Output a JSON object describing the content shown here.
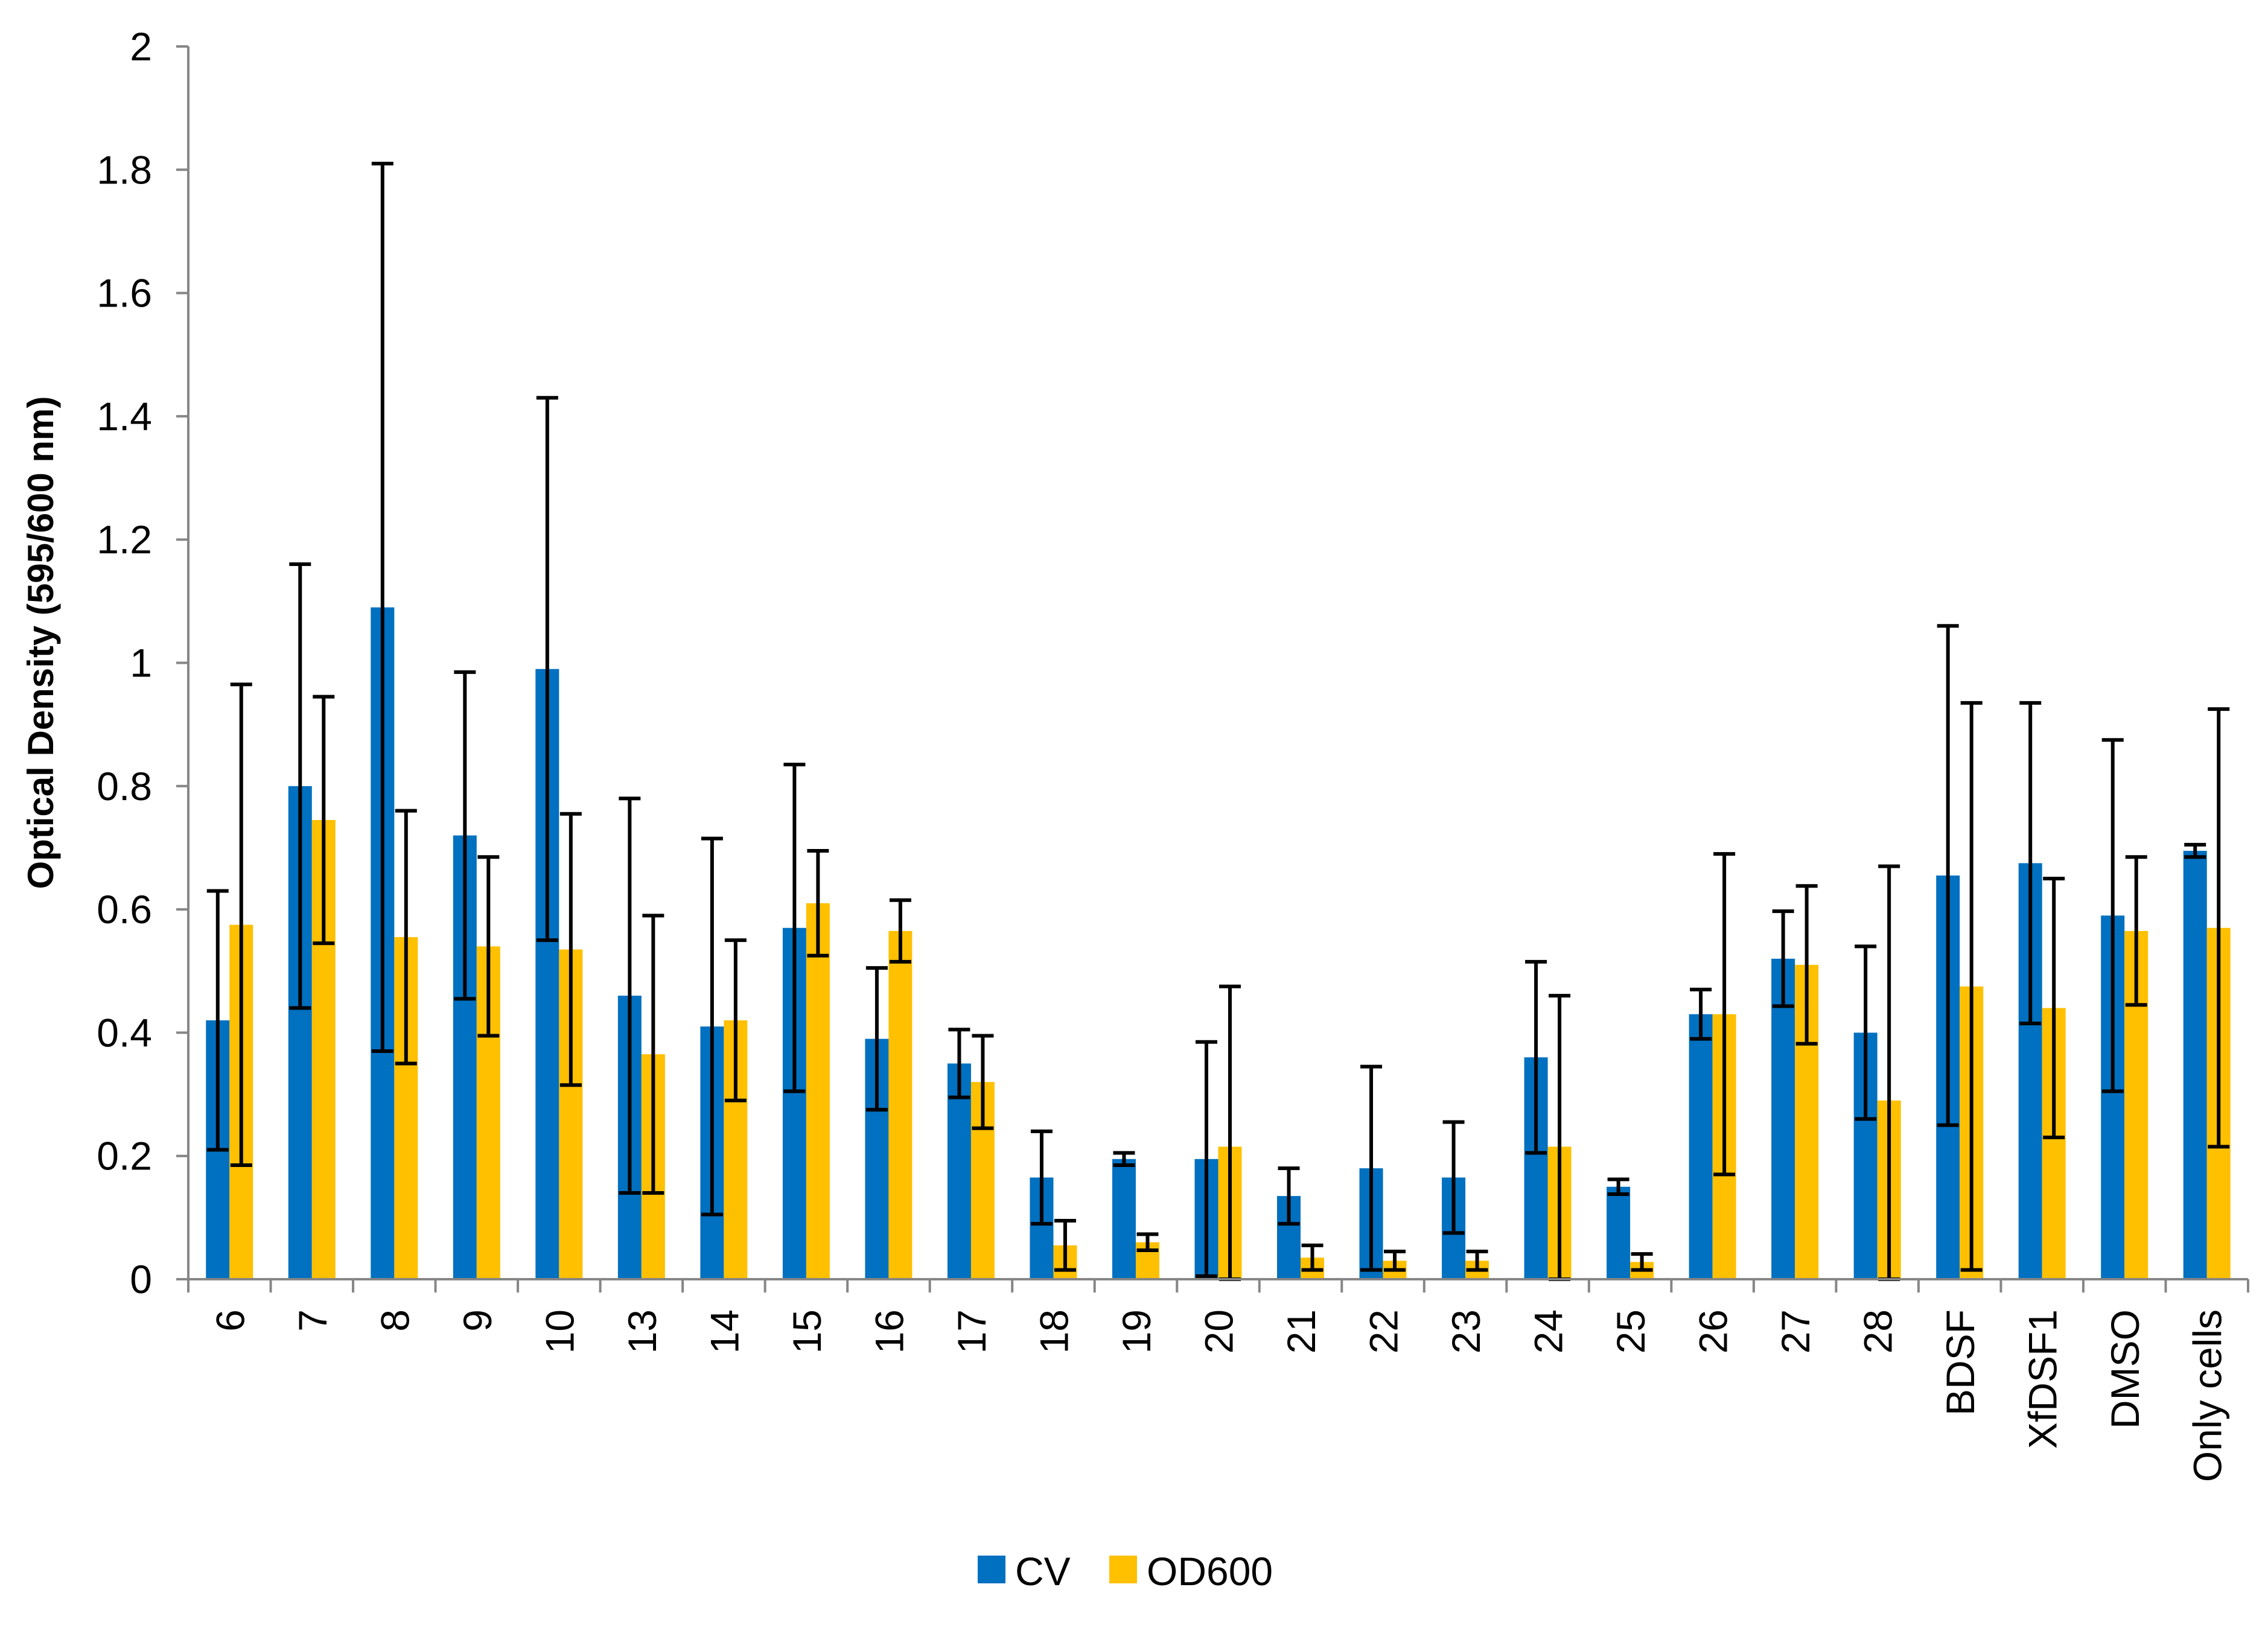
{
  "chart_data": {
    "type": "bar",
    "title": "",
    "xlabel": "",
    "ylabel": "Optical Density (595/600 nm)",
    "ylim": [
      0,
      2
    ],
    "yticks": [
      0,
      0.2,
      0.4,
      0.6,
      0.8,
      1,
      1.2,
      1.4,
      1.6,
      1.8,
      2
    ],
    "ytick_labels": [
      "0",
      "0.2",
      "0.4",
      "0.6",
      "0.8",
      "1",
      "1.2",
      "1.4",
      "1.6",
      "1.8",
      "2"
    ],
    "grid": false,
    "legend_position": "bottom-center",
    "categories": [
      "6",
      "7",
      "8",
      "9",
      "10",
      "13",
      "14",
      "15",
      "16",
      "17",
      "18",
      "19",
      "20",
      "21",
      "22",
      "23",
      "24",
      "25",
      "26",
      "27",
      "28",
      "BDSF",
      "XfDSF1",
      "DMSO",
      "Only cells"
    ],
    "series": [
      {
        "name": "CV",
        "color": "#0070C0",
        "values": [
          0.42,
          0.8,
          1.09,
          0.72,
          0.99,
          0.46,
          0.41,
          0.57,
          0.39,
          0.35,
          0.165,
          0.195,
          0.195,
          0.135,
          0.18,
          0.165,
          0.36,
          0.15,
          0.43,
          0.52,
          0.4,
          0.655,
          0.675,
          0.59,
          0.695
        ],
        "errors": [
          0.21,
          0.36,
          0.72,
          0.265,
          0.44,
          0.32,
          0.305,
          0.265,
          0.115,
          0.055,
          0.075,
          0.01,
          0.19,
          0.045,
          0.165,
          0.09,
          0.155,
          0.012,
          0.04,
          0.077,
          0.14,
          0.405,
          0.26,
          0.285,
          0.01
        ]
      },
      {
        "name": "OD600",
        "color": "#FFC000",
        "values": [
          0.575,
          0.745,
          0.555,
          0.54,
          0.535,
          0.365,
          0.42,
          0.61,
          0.565,
          0.32,
          0.055,
          0.06,
          0.215,
          0.035,
          0.03,
          0.03,
          0.215,
          0.028,
          0.43,
          0.51,
          0.29,
          0.475,
          0.44,
          0.565,
          0.57
        ],
        "errors": [
          0.39,
          0.2,
          0.205,
          0.145,
          0.22,
          0.225,
          0.13,
          0.085,
          0.05,
          0.075,
          0.04,
          0.013,
          0.26,
          0.02,
          0.015,
          0.015,
          0.245,
          0.013,
          0.26,
          0.128,
          0.38,
          0.46,
          0.21,
          0.12,
          0.355
        ]
      }
    ]
  }
}
